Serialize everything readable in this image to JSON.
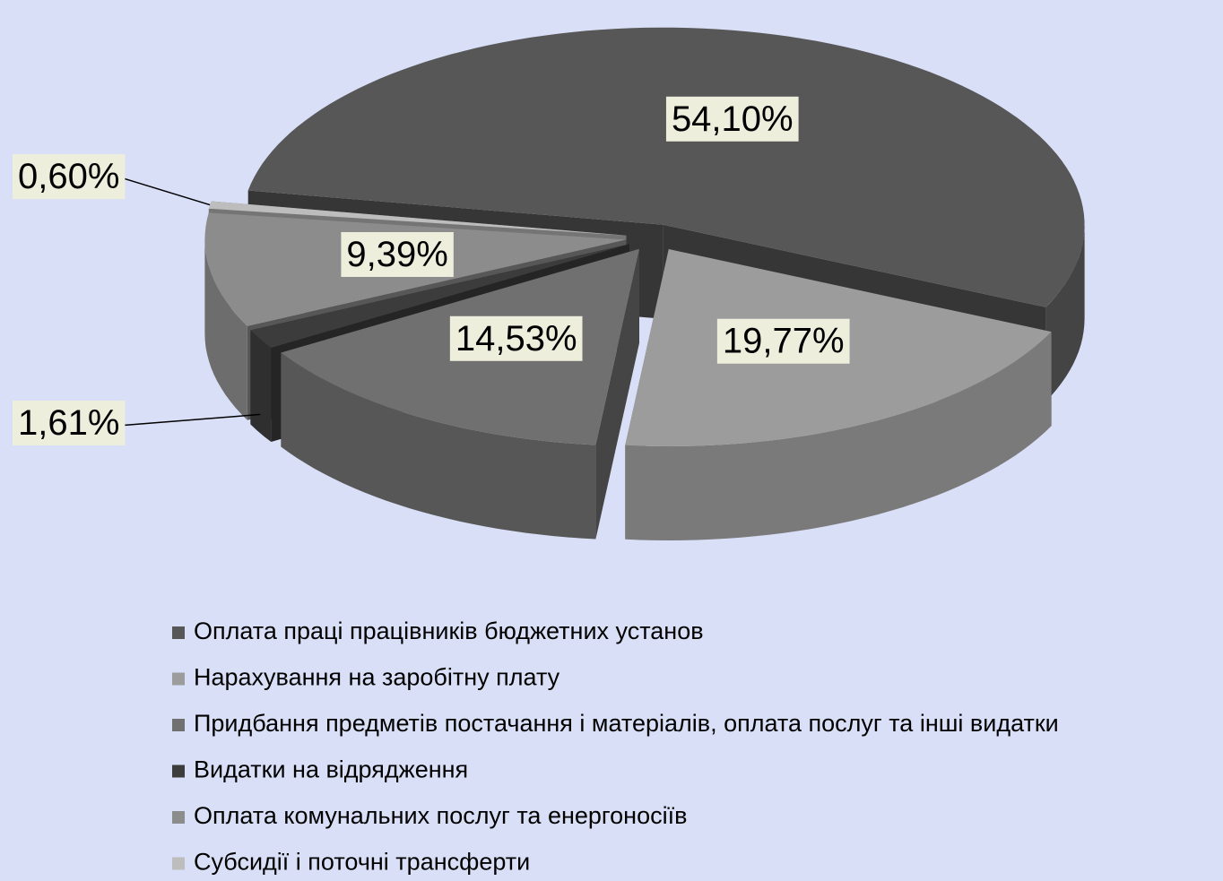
{
  "chart_data": {
    "type": "pie",
    "categories": [
      "Оплата праці працівників бюджетних установ",
      "Нарахування на заробітну плату",
      "Придбання предметів постачання і матеріалів, оплата послуг та інші видатки",
      "Видатки на відрядження",
      "Оплата комунальних послуг та енергоносіїв",
      "Субсидії і поточні трансферти"
    ],
    "values": [
      54.1,
      19.77,
      14.53,
      1.61,
      9.39,
      0.6
    ],
    "value_labels": [
      "54,10%",
      "19,77%",
      "14,53%",
      "1,61%",
      "9,39%",
      "0,60%"
    ],
    "colors": [
      "#575757",
      "#9c9c9c",
      "#707070",
      "#3c3c3c",
      "#8c8c8c",
      "#bdbdbd"
    ],
    "legend": "bottom"
  }
}
